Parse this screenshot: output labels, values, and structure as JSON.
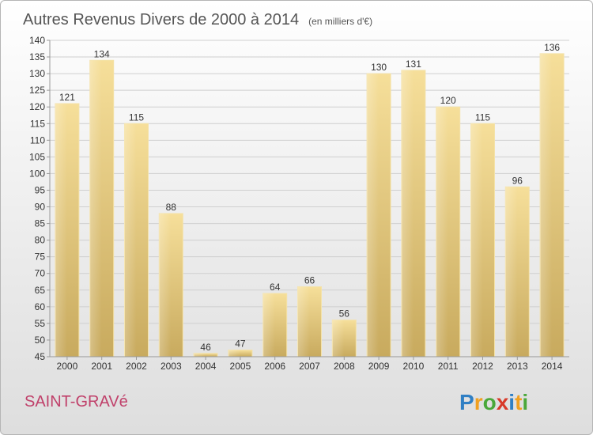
{
  "chart_data": {
    "type": "bar",
    "title": "Autres Revenus Divers de 2000 à 2014",
    "subtitle": "(en milliers d'€)",
    "categories": [
      "2000",
      "2001",
      "2002",
      "2003",
      "2004",
      "2005",
      "2006",
      "2007",
      "2008",
      "2009",
      "2010",
      "2011",
      "2012",
      "2013",
      "2014"
    ],
    "values": [
      121,
      134,
      115,
      88,
      46,
      47,
      64,
      66,
      56,
      130,
      131,
      120,
      115,
      96,
      136
    ],
    "ylim": [
      45,
      140
    ],
    "yticks": [
      45,
      50,
      55,
      60,
      65,
      70,
      75,
      80,
      85,
      90,
      95,
      100,
      105,
      110,
      115,
      120,
      125,
      130,
      135,
      140
    ],
    "grid": true,
    "bar_color": "#e8c97a"
  },
  "place": "SAINT-GRAVé",
  "logo": {
    "letters": [
      "P",
      "r",
      "o",
      "x",
      "i",
      "t",
      "i"
    ],
    "colors": [
      "#2f7fc4",
      "#f0a020",
      "#4aa83a",
      "#d83a2a",
      "#2f7fc4",
      "#f0a020",
      "#4aa83a"
    ]
  }
}
